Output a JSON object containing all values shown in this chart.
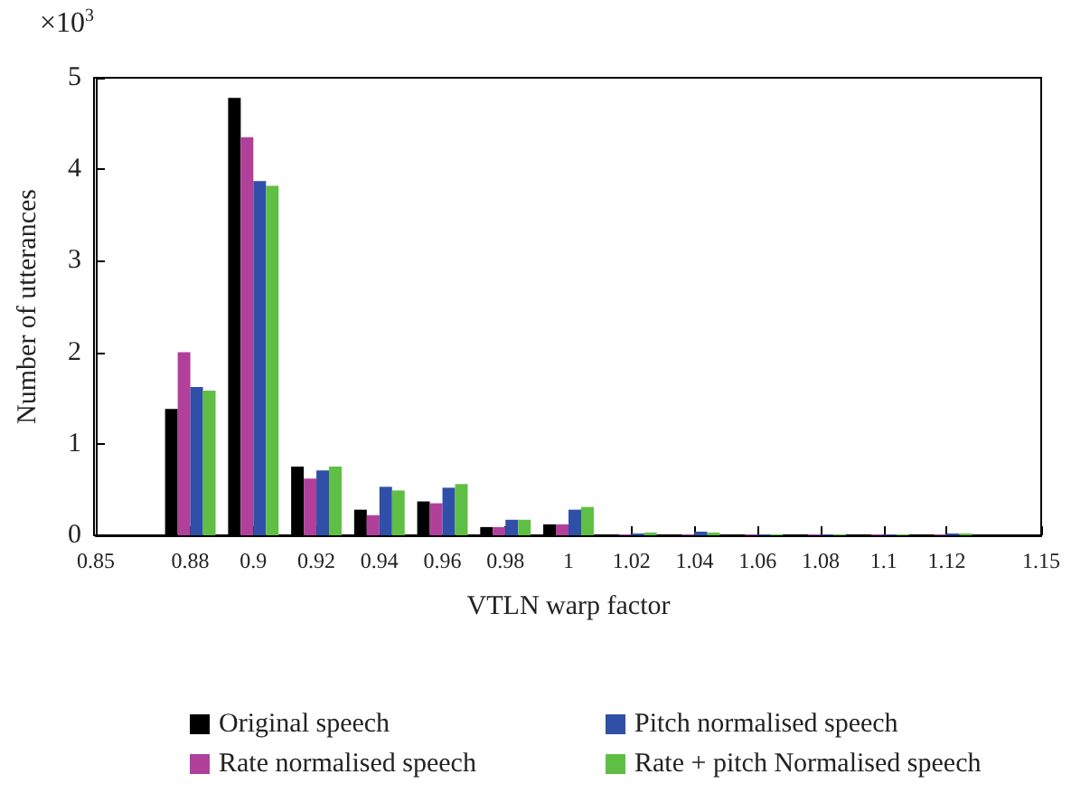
{
  "chart_data": {
    "type": "bar",
    "xlabel": "VTLN warp factor",
    "ylabel": "Number of utterances",
    "annotations": [
      "×10$^{3}$"
    ],
    "x": [
      0.88,
      0.9,
      0.92,
      0.94,
      0.96,
      0.98,
      1.0,
      1.02,
      1.04,
      1.06,
      1.08,
      1.1,
      1.12
    ],
    "series": [
      {
        "name": "Original speech",
        "color": "#000000",
        "values": [
          1.38,
          4.78,
          0.75,
          0.28,
          0.37,
          0.09,
          0.12,
          0.01,
          0.01,
          0.01,
          0.01,
          0.01,
          0.01
        ]
      },
      {
        "name": "Rate normalised speech",
        "color": "#b0409a",
        "values": [
          2.0,
          4.35,
          0.62,
          0.22,
          0.35,
          0.09,
          0.12,
          0.01,
          0.01,
          0.01,
          0.01,
          0.01,
          0.01
        ]
      },
      {
        "name": "Pitch normalised speech",
        "color": "#2f4fa8",
        "values": [
          1.62,
          3.87,
          0.71,
          0.53,
          0.52,
          0.17,
          0.28,
          0.02,
          0.04,
          0.01,
          0.01,
          0.01,
          0.02
        ]
      },
      {
        "name": "Rate + pitch Normalised speech",
        "color": "#5fbf45",
        "values": [
          1.58,
          3.82,
          0.75,
          0.49,
          0.56,
          0.17,
          0.31,
          0.03,
          0.03,
          0.01,
          0.01,
          0.01,
          0.02
        ]
      }
    ],
    "xlim": [
      0.85,
      1.15
    ],
    "xticks": [
      0.85,
      0.88,
      0.9,
      0.92,
      0.94,
      0.96,
      0.98,
      1,
      1.02,
      1.04,
      1.06,
      1.08,
      1.1,
      1.12,
      1.15
    ],
    "ylim": [
      0,
      5
    ],
    "yticks": [
      0,
      1,
      2,
      3,
      4,
      5
    ],
    "grid": false,
    "legend": "bottom"
  }
}
